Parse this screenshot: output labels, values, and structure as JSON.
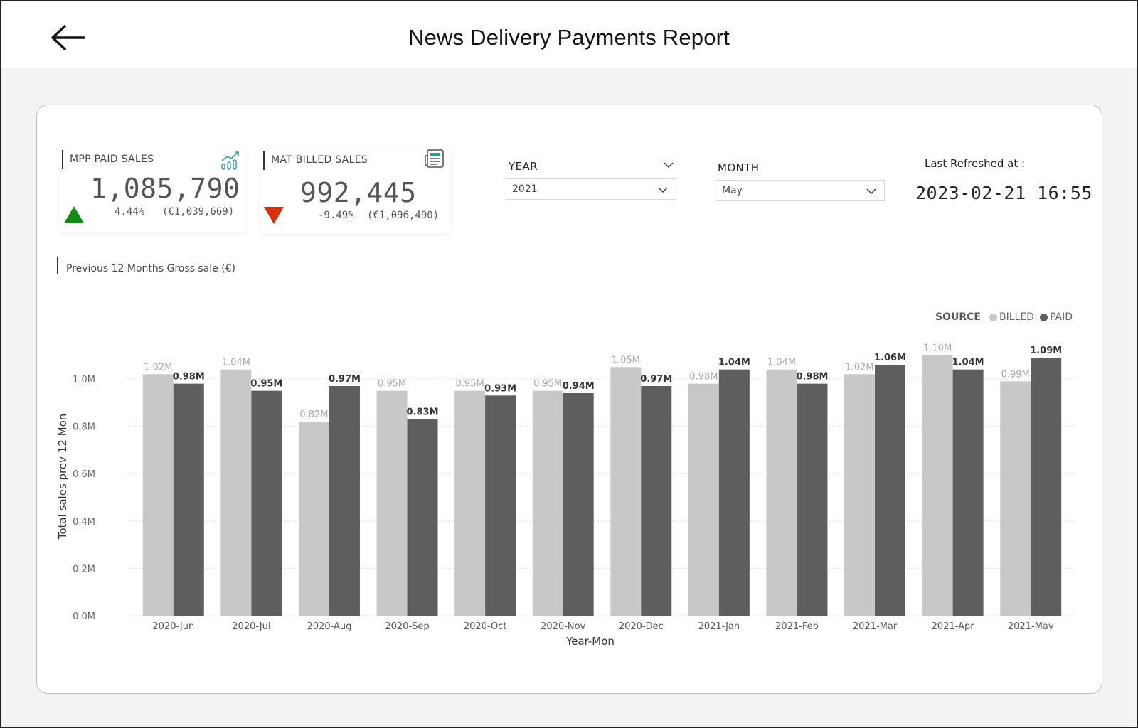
{
  "header": {
    "title": "News Delivery Payments Report",
    "back_icon": "arrow-left-icon"
  },
  "kpis": [
    {
      "label": "MPP PAID SALES",
      "value": "1,085,790",
      "change_pct": "4.44%",
      "previous": "(€1,039,669)",
      "trend": "up",
      "trend_color": "#138a13",
      "icon": "growth-chart-icon"
    },
    {
      "label": "MAT BILLED SALES",
      "value": "992,445",
      "change_pct": "-9.49%",
      "previous": "(€1,096,490)",
      "trend": "down",
      "trend_color": "#d9300f",
      "icon": "newspaper-icon"
    }
  ],
  "filters": {
    "year": {
      "label": "YEAR",
      "value": "2021"
    },
    "month": {
      "label": "MONTH",
      "value": "May"
    }
  },
  "refresh": {
    "label": "Last Refreshed at :",
    "value": "2023-02-21 16:55"
  },
  "section": {
    "title": "Previous 12 Months Gross sale (€)"
  },
  "legend": {
    "title": "SOURCE",
    "items": [
      "BILLED",
      "PAID"
    ]
  },
  "colors": {
    "billed": "#c8c8c8",
    "paid": "#5f5e5e",
    "kpi_accent_icon": "#2a9d8f"
  },
  "chart_data": {
    "type": "bar",
    "title": "",
    "xlabel": "Year-Mon",
    "ylabel": "Total sales prev 12 Mon",
    "ylim": [
      0,
      1.1
    ],
    "y_unit": "M",
    "yticks": [
      0.0,
      0.2,
      0.4,
      0.6,
      0.8,
      1.0
    ],
    "ytick_labels": [
      "0.0M",
      "0.2M",
      "0.4M",
      "0.6M",
      "0.8M",
      "1.0M"
    ],
    "grid": true,
    "legend_position": "top-right",
    "categories": [
      "2020-Jun",
      "2020-Jul",
      "2020-Aug",
      "2020-Sep",
      "2020-Oct",
      "2020-Nov",
      "2020-Dec",
      "2021-Jan",
      "2021-Feb",
      "2021-Mar",
      "2021-Apr",
      "2021-May"
    ],
    "series": [
      {
        "name": "BILLED",
        "values": [
          1.02,
          1.04,
          0.82,
          0.95,
          0.95,
          0.95,
          1.05,
          0.98,
          1.04,
          1.02,
          1.1,
          0.99
        ],
        "labels": [
          "1.02M",
          "1.04M",
          "0.82M",
          "0.95M",
          "0.95M",
          "0.95M",
          "1.05M",
          "0.98M",
          "1.04M",
          "1.02M",
          "1.10M",
          "0.99M"
        ]
      },
      {
        "name": "PAID",
        "values": [
          0.98,
          0.95,
          0.97,
          0.83,
          0.93,
          0.94,
          0.97,
          1.04,
          0.98,
          1.06,
          1.04,
          1.09
        ],
        "labels": [
          "0.98M",
          "0.95M",
          "0.97M",
          "0.83M",
          "0.93M",
          "0.94M",
          "0.97M",
          "1.04M",
          "0.98M",
          "1.06M",
          "1.04M",
          "1.09M"
        ]
      }
    ]
  }
}
